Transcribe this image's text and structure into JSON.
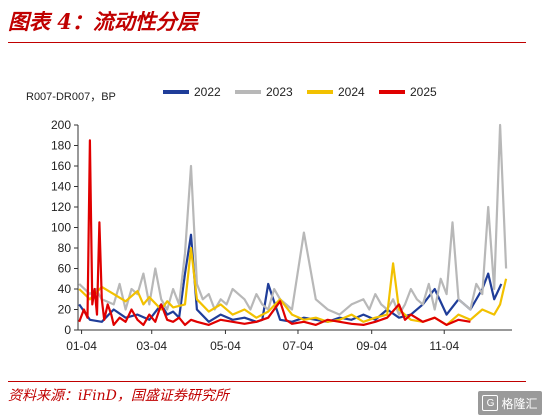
{
  "header": {
    "title": "图表 4：流动性分层"
  },
  "footer": {
    "source": "资料来源：iFinD，国盛证券研究所",
    "watermark": "格隆汇"
  },
  "colors": {
    "title": "#c00000",
    "s2022": "#1f3d99",
    "s2023": "#b8b8b8",
    "s2024": "#f2c100",
    "s2025": "#e00000"
  },
  "chart_data": {
    "type": "line",
    "title": "",
    "ylabel": "R007-DR007，BP",
    "xlabel": "",
    "ylim": [
      0,
      200
    ],
    "yticks": [
      0,
      20,
      40,
      60,
      80,
      100,
      120,
      140,
      160,
      180,
      200
    ],
    "xticks": [
      "01-04",
      "03-04",
      "05-04",
      "07-04",
      "09-04",
      "11-04"
    ],
    "legend_position": "top",
    "grid": false,
    "series": [
      {
        "name": "2022",
        "color": "#1f3d99",
        "x": [
          1,
          10,
          20,
          30,
          40,
          50,
          60,
          70,
          75,
          80,
          85,
          90,
          95,
          100,
          110,
          120,
          130,
          140,
          150,
          155,
          160,
          170,
          180,
          190,
          200,
          210,
          220,
          230,
          240,
          250,
          260,
          270,
          280,
          290,
          300,
          310,
          320,
          330,
          340,
          345,
          350,
          356
        ],
        "values": [
          25,
          10,
          8,
          20,
          12,
          15,
          10,
          25,
          15,
          18,
          12,
          55,
          93,
          20,
          8,
          15,
          10,
          12,
          8,
          10,
          45,
          10,
          8,
          12,
          10,
          8,
          12,
          10,
          15,
          10,
          20,
          12,
          15,
          25,
          40,
          15,
          30,
          20,
          40,
          55,
          30,
          45
        ]
      },
      {
        "name": "2023",
        "color": "#b8b8b8",
        "x": [
          1,
          10,
          15,
          20,
          30,
          35,
          40,
          45,
          50,
          55,
          60,
          65,
          70,
          75,
          80,
          85,
          90,
          95,
          100,
          105,
          110,
          115,
          120,
          125,
          130,
          140,
          145,
          150,
          155,
          160,
          165,
          170,
          175,
          180,
          190,
          200,
          210,
          220,
          230,
          240,
          245,
          250,
          255,
          260,
          265,
          270,
          275,
          280,
          285,
          290,
          295,
          300,
          305,
          310,
          315,
          320,
          330,
          335,
          340,
          345,
          350,
          355,
          360
        ],
        "values": [
          45,
          35,
          40,
          30,
          25,
          45,
          20,
          40,
          35,
          55,
          25,
          60,
          30,
          20,
          40,
          25,
          75,
          160,
          45,
          30,
          35,
          20,
          30,
          25,
          40,
          30,
          20,
          35,
          25,
          20,
          40,
          30,
          25,
          20,
          95,
          30,
          20,
          15,
          25,
          30,
          20,
          35,
          25,
          20,
          30,
          15,
          25,
          40,
          30,
          25,
          45,
          20,
          50,
          35,
          105,
          30,
          20,
          45,
          35,
          120,
          40,
          200,
          60
        ]
      },
      {
        "name": "2024",
        "color": "#f2c100",
        "x": [
          1,
          10,
          20,
          30,
          40,
          50,
          55,
          60,
          70,
          75,
          80,
          90,
          95,
          100,
          110,
          120,
          130,
          140,
          150,
          160,
          170,
          180,
          190,
          200,
          210,
          220,
          230,
          240,
          250,
          260,
          265,
          270,
          280,
          290,
          300,
          310,
          320,
          330,
          340,
          350,
          355,
          360
        ],
        "values": [
          40,
          30,
          42,
          35,
          28,
          38,
          25,
          32,
          20,
          28,
          22,
          25,
          80,
          30,
          18,
          25,
          15,
          20,
          12,
          18,
          30,
          15,
          10,
          12,
          8,
          10,
          15,
          8,
          12,
          15,
          65,
          20,
          10,
          8,
          12,
          5,
          15,
          10,
          20,
          15,
          25,
          50
        ]
      },
      {
        "name": "2025",
        "color": "#e00000",
        "x": [
          1,
          5,
          8,
          10,
          12,
          14,
          16,
          18,
          20,
          22,
          25,
          28,
          30,
          35,
          40,
          45,
          50,
          55,
          60,
          65,
          70,
          75,
          80,
          85,
          90,
          95,
          100,
          110,
          120,
          130,
          140,
          150,
          160,
          170,
          175,
          180,
          190,
          200,
          210,
          220,
          230,
          240,
          250,
          260,
          270,
          275,
          280,
          290,
          300,
          310,
          320,
          330
        ],
        "values": [
          8,
          20,
          12,
          185,
          25,
          40,
          15,
          105,
          30,
          10,
          25,
          15,
          5,
          12,
          8,
          20,
          10,
          5,
          15,
          8,
          25,
          10,
          8,
          12,
          5,
          10,
          8,
          5,
          10,
          8,
          6,
          8,
          12,
          28,
          10,
          6,
          8,
          5,
          10,
          8,
          6,
          5,
          8,
          12,
          25,
          10,
          15,
          8,
          12,
          5,
          10,
          8
        ]
      }
    ]
  }
}
